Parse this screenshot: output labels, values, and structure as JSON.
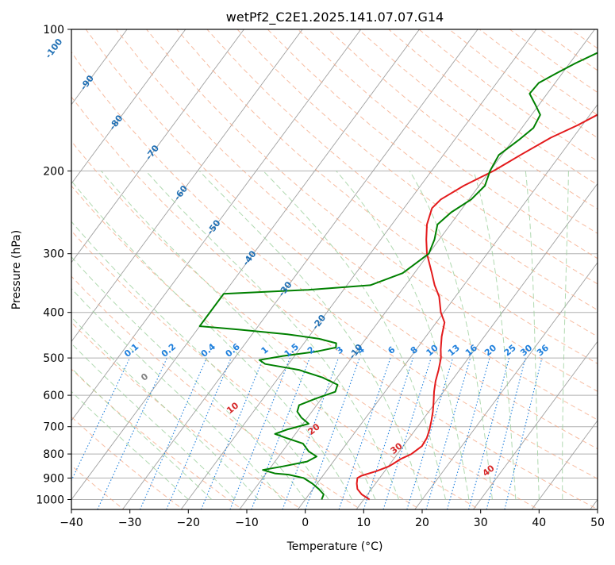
{
  "chart_data": {
    "type": "line",
    "subtype": "skew-t log-p diagram",
    "title": "wetPf2_C2E1.2025.141.07.07.G14",
    "xlabel": "Temperature (°C)",
    "ylabel": "Pressure (hPa)",
    "xlim": [
      -40,
      50
    ],
    "ylim_hpa": [
      1050,
      100
    ],
    "y_scale": "log",
    "x_ticks": [
      -40,
      -30,
      -20,
      -10,
      0,
      10,
      20,
      30,
      40,
      50
    ],
    "y_ticks": [
      100,
      200,
      300,
      400,
      500,
      600,
      700,
      800,
      900,
      1000
    ],
    "grid": true,
    "legend": "none",
    "colors": {
      "temperature": "#e31a1c",
      "dewpoint": "#008000",
      "isotherms": "#a0a0a0",
      "dry_adiabats": "#f4a582",
      "moist_adiabats": "#9ccf9c",
      "mixing_ratio": "#1e7fdc",
      "isotherm_labels": "#1f6fb4",
      "theta_labels": "#d62728",
      "zero_label": "#808080"
    },
    "series": [
      {
        "name": "Temperature",
        "points": [
          [
            1000,
            11.0
          ],
          [
            975,
            9.0
          ],
          [
            950,
            7.6
          ],
          [
            925,
            6.8
          ],
          [
            900,
            6.2
          ],
          [
            890,
            6.6
          ],
          [
            870,
            8.6
          ],
          [
            850,
            10.1
          ],
          [
            840,
            10.5
          ],
          [
            820,
            11.2
          ],
          [
            800,
            12.4
          ],
          [
            770,
            13.2
          ],
          [
            740,
            13.0
          ],
          [
            710,
            12.4
          ],
          [
            680,
            11.6
          ],
          [
            650,
            10.7
          ],
          [
            620,
            9.6
          ],
          [
            590,
            8.4
          ],
          [
            560,
            7.3
          ],
          [
            530,
            6.4
          ],
          [
            500,
            5.3
          ],
          [
            480,
            4.2
          ],
          [
            450,
            2.7
          ],
          [
            420,
            1.4
          ],
          [
            400,
            -0.5
          ],
          [
            370,
            -2.8
          ],
          [
            350,
            -5.0
          ],
          [
            330,
            -7.0
          ],
          [
            300,
            -10.3
          ],
          [
            280,
            -12.2
          ],
          [
            260,
            -14.0
          ],
          [
            240,
            -15.2
          ],
          [
            230,
            -14.8
          ],
          [
            215,
            -12.6
          ],
          [
            200,
            -9.4
          ],
          [
            185,
            -6.8
          ],
          [
            170,
            -3.8
          ],
          [
            160,
            -0.8
          ],
          [
            150,
            1.8
          ],
          [
            140,
            3.2
          ],
          [
            130,
            4.4
          ],
          [
            120,
            6.4
          ],
          [
            110,
            9.2
          ],
          [
            100,
            12.0
          ]
        ]
      },
      {
        "name": "Dewpoint",
        "points": [
          [
            1000,
            2.8
          ],
          [
            975,
            2.5
          ],
          [
            950,
            1.0
          ],
          [
            925,
            -0.8
          ],
          [
            900,
            -3.0
          ],
          [
            885,
            -6.0
          ],
          [
            880,
            -8.5
          ],
          [
            865,
            -11.0
          ],
          [
            850,
            -8.0
          ],
          [
            830,
            -4.5
          ],
          [
            810,
            -3.5
          ],
          [
            790,
            -5.5
          ],
          [
            760,
            -7.5
          ],
          [
            740,
            -11.0
          ],
          [
            725,
            -13.5
          ],
          [
            710,
            -12.0
          ],
          [
            690,
            -9.0
          ],
          [
            670,
            -11.0
          ],
          [
            650,
            -12.5
          ],
          [
            630,
            -13.0
          ],
          [
            610,
            -11.0
          ],
          [
            590,
            -8.5
          ],
          [
            570,
            -9.0
          ],
          [
            550,
            -12.5
          ],
          [
            530,
            -17.5
          ],
          [
            515,
            -24.0
          ],
          [
            505,
            -25.5
          ],
          [
            495,
            -22.0
          ],
          [
            485,
            -17.0
          ],
          [
            475,
            -14.0
          ],
          [
            465,
            -14.5
          ],
          [
            455,
            -18.0
          ],
          [
            445,
            -24.0
          ],
          [
            435,
            -33.0
          ],
          [
            428,
            -40.0
          ],
          [
            365,
            -40.0
          ],
          [
            358,
            -26.0
          ],
          [
            350,
            -16.0
          ],
          [
            330,
            -12.0
          ],
          [
            300,
            -10.0
          ],
          [
            280,
            -10.8
          ],
          [
            260,
            -12.2
          ],
          [
            245,
            -11.4
          ],
          [
            230,
            -9.6
          ],
          [
            215,
            -9.0
          ],
          [
            200,
            -10.0
          ],
          [
            185,
            -10.5
          ],
          [
            172,
            -9.0
          ],
          [
            162,
            -8.0
          ],
          [
            152,
            -8.5
          ],
          [
            145,
            -10.5
          ],
          [
            137,
            -13.0
          ],
          [
            130,
            -12.8
          ],
          [
            124,
            -11.0
          ],
          [
            118,
            -9.0
          ],
          [
            112,
            -6.5
          ],
          [
            106,
            -4.0
          ],
          [
            100,
            -1.0
          ]
        ]
      }
    ],
    "isotherm_labels": [
      "-100",
      "-90",
      "-80",
      "-70",
      "-60",
      "-50",
      "-40",
      "-30",
      "-20",
      "-10"
    ],
    "mixing_ratio_labels": [
      "0.1",
      "0.2",
      "0.4",
      "0.6",
      "1",
      "1.5",
      "2",
      "3",
      "4",
      "6",
      "8",
      "10",
      "13",
      "16",
      "20",
      "25",
      "30",
      "36"
    ],
    "theta_labels": [
      "0",
      "10",
      "20",
      "30",
      "40"
    ]
  }
}
